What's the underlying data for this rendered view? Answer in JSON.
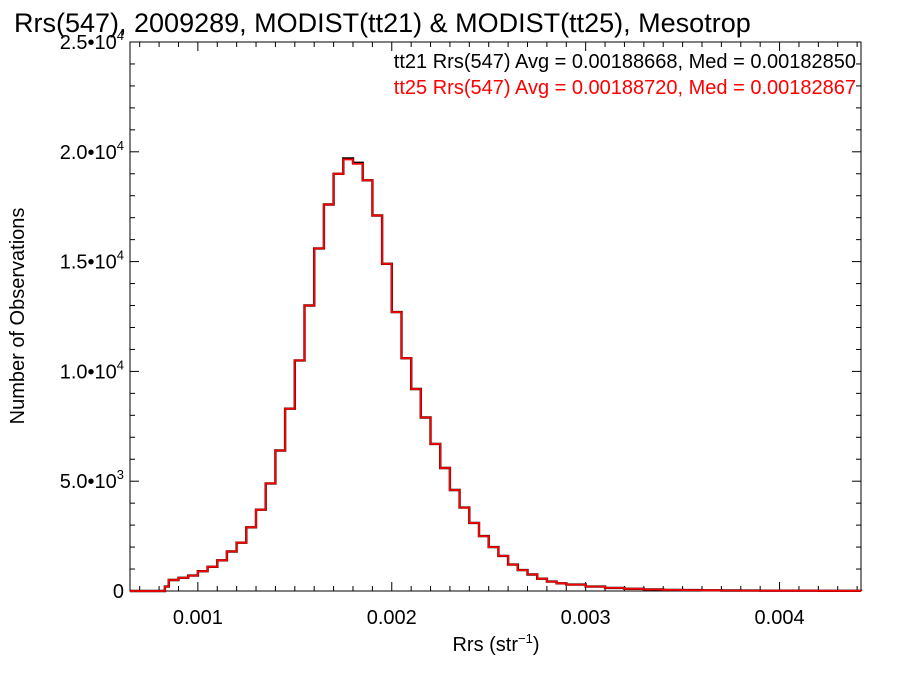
{
  "chart_data": {
    "type": "line",
    "title": "Rrs(547), 2009289, MODIST(tt21) & MODIST(tt25), Mesotrop",
    "xlabel": {
      "base": "Rrs (str",
      "sup": "−1",
      "end": ")"
    },
    "ylabel": "Number of Observations",
    "xlim": [
      0.00065,
      0.00442
    ],
    "ylim": [
      0,
      25000
    ],
    "x_ticks": [
      {
        "value": 0.001,
        "label": "0.001"
      },
      {
        "value": 0.002,
        "label": "0.002"
      },
      {
        "value": 0.003,
        "label": "0.003"
      },
      {
        "value": 0.004,
        "label": "0.004"
      }
    ],
    "y_ticks": [
      {
        "value": 0,
        "mant": "0",
        "exp": ""
      },
      {
        "value": 5000,
        "mant": "5.0•10",
        "exp": "3"
      },
      {
        "value": 10000,
        "mant": "1.0•10",
        "exp": "4"
      },
      {
        "value": 15000,
        "mant": "1.5•10",
        "exp": "4"
      },
      {
        "value": 20000,
        "mant": "2.0•10",
        "exp": "4"
      },
      {
        "value": 25000,
        "mant": "2.5•10",
        "exp": "4"
      }
    ],
    "annotations": [
      {
        "text": "tt21 Rrs(547) Avg = 0.00188668, Med = 0.00182850",
        "color": "#000000"
      },
      {
        "text": "tt25 Rrs(547) Avg = 0.00188720, Med = 0.00182867",
        "color": "#ff0000"
      }
    ],
    "series": [
      {
        "color": "#000000",
        "points": [
          [
            0.00065,
            0
          ],
          [
            0.0008,
            0
          ],
          [
            0.00083,
            200
          ],
          [
            0.00085,
            500
          ],
          [
            0.0009,
            600
          ],
          [
            0.00095,
            700
          ],
          [
            0.001,
            900
          ],
          [
            0.00105,
            1100
          ],
          [
            0.0011,
            1400
          ],
          [
            0.00115,
            1800
          ],
          [
            0.0012,
            2200
          ],
          [
            0.00125,
            2900
          ],
          [
            0.0013,
            3700
          ],
          [
            0.00135,
            4900
          ],
          [
            0.0014,
            6400
          ],
          [
            0.00145,
            8300
          ],
          [
            0.0015,
            10500
          ],
          [
            0.00155,
            13000
          ],
          [
            0.0016,
            15600
          ],
          [
            0.00165,
            17600
          ],
          [
            0.0017,
            19000
          ],
          [
            0.00175,
            19700
          ],
          [
            0.0018,
            19500
          ],
          [
            0.00185,
            18700
          ],
          [
            0.0019,
            17100
          ],
          [
            0.00195,
            14900
          ],
          [
            0.002,
            12700
          ],
          [
            0.00205,
            10600
          ],
          [
            0.0021,
            9200
          ],
          [
            0.00215,
            7900
          ],
          [
            0.0022,
            6700
          ],
          [
            0.00225,
            5600
          ],
          [
            0.0023,
            4600
          ],
          [
            0.00235,
            3800
          ],
          [
            0.0024,
            3100
          ],
          [
            0.00245,
            2500
          ],
          [
            0.0025,
            2000
          ],
          [
            0.00255,
            1600
          ],
          [
            0.0026,
            1200
          ],
          [
            0.00265,
            950
          ],
          [
            0.0027,
            750
          ],
          [
            0.00275,
            560
          ],
          [
            0.0028,
            430
          ],
          [
            0.00285,
            350
          ],
          [
            0.0029,
            290
          ],
          [
            0.003,
            200
          ],
          [
            0.0031,
            140
          ],
          [
            0.0032,
            100
          ],
          [
            0.0033,
            70
          ],
          [
            0.0034,
            50
          ],
          [
            0.0035,
            40
          ],
          [
            0.0036,
            30
          ],
          [
            0.0037,
            25
          ],
          [
            0.0038,
            20
          ],
          [
            0.0039,
            15
          ],
          [
            0.004,
            12
          ],
          [
            0.0042,
            8
          ],
          [
            0.00442,
            5
          ]
        ]
      },
      {
        "color": "#ff0000",
        "points": [
          [
            0.00065,
            0
          ],
          [
            0.0008,
            0
          ],
          [
            0.00083,
            200
          ],
          [
            0.00085,
            500
          ],
          [
            0.0009,
            600
          ],
          [
            0.00095,
            700
          ],
          [
            0.001,
            900
          ],
          [
            0.00105,
            1100
          ],
          [
            0.0011,
            1400
          ],
          [
            0.00115,
            1800
          ],
          [
            0.0012,
            2200
          ],
          [
            0.00125,
            2900
          ],
          [
            0.0013,
            3700
          ],
          [
            0.00135,
            4900
          ],
          [
            0.0014,
            6400
          ],
          [
            0.00145,
            8300
          ],
          [
            0.0015,
            10500
          ],
          [
            0.00155,
            13000
          ],
          [
            0.0016,
            15600
          ],
          [
            0.00165,
            17600
          ],
          [
            0.0017,
            19000
          ],
          [
            0.00175,
            19650
          ],
          [
            0.0018,
            19450
          ],
          [
            0.00185,
            18700
          ],
          [
            0.0019,
            17100
          ],
          [
            0.00195,
            14900
          ],
          [
            0.002,
            12700
          ],
          [
            0.00205,
            10600
          ],
          [
            0.0021,
            9200
          ],
          [
            0.00215,
            7900
          ],
          [
            0.0022,
            6700
          ],
          [
            0.00225,
            5600
          ],
          [
            0.0023,
            4600
          ],
          [
            0.00235,
            3800
          ],
          [
            0.0024,
            3100
          ],
          [
            0.00245,
            2500
          ],
          [
            0.0025,
            2000
          ],
          [
            0.00255,
            1600
          ],
          [
            0.0026,
            1200
          ],
          [
            0.00265,
            950
          ],
          [
            0.0027,
            750
          ],
          [
            0.00275,
            560
          ],
          [
            0.0028,
            430
          ],
          [
            0.00285,
            350
          ],
          [
            0.0029,
            290
          ],
          [
            0.003,
            200
          ],
          [
            0.0031,
            140
          ],
          [
            0.0032,
            100
          ],
          [
            0.0033,
            70
          ],
          [
            0.0034,
            50
          ],
          [
            0.0035,
            40
          ],
          [
            0.0036,
            30
          ],
          [
            0.0037,
            25
          ],
          [
            0.0038,
            20
          ],
          [
            0.0039,
            15
          ],
          [
            0.004,
            12
          ],
          [
            0.0042,
            8
          ],
          [
            0.00442,
            5
          ]
        ]
      }
    ]
  }
}
